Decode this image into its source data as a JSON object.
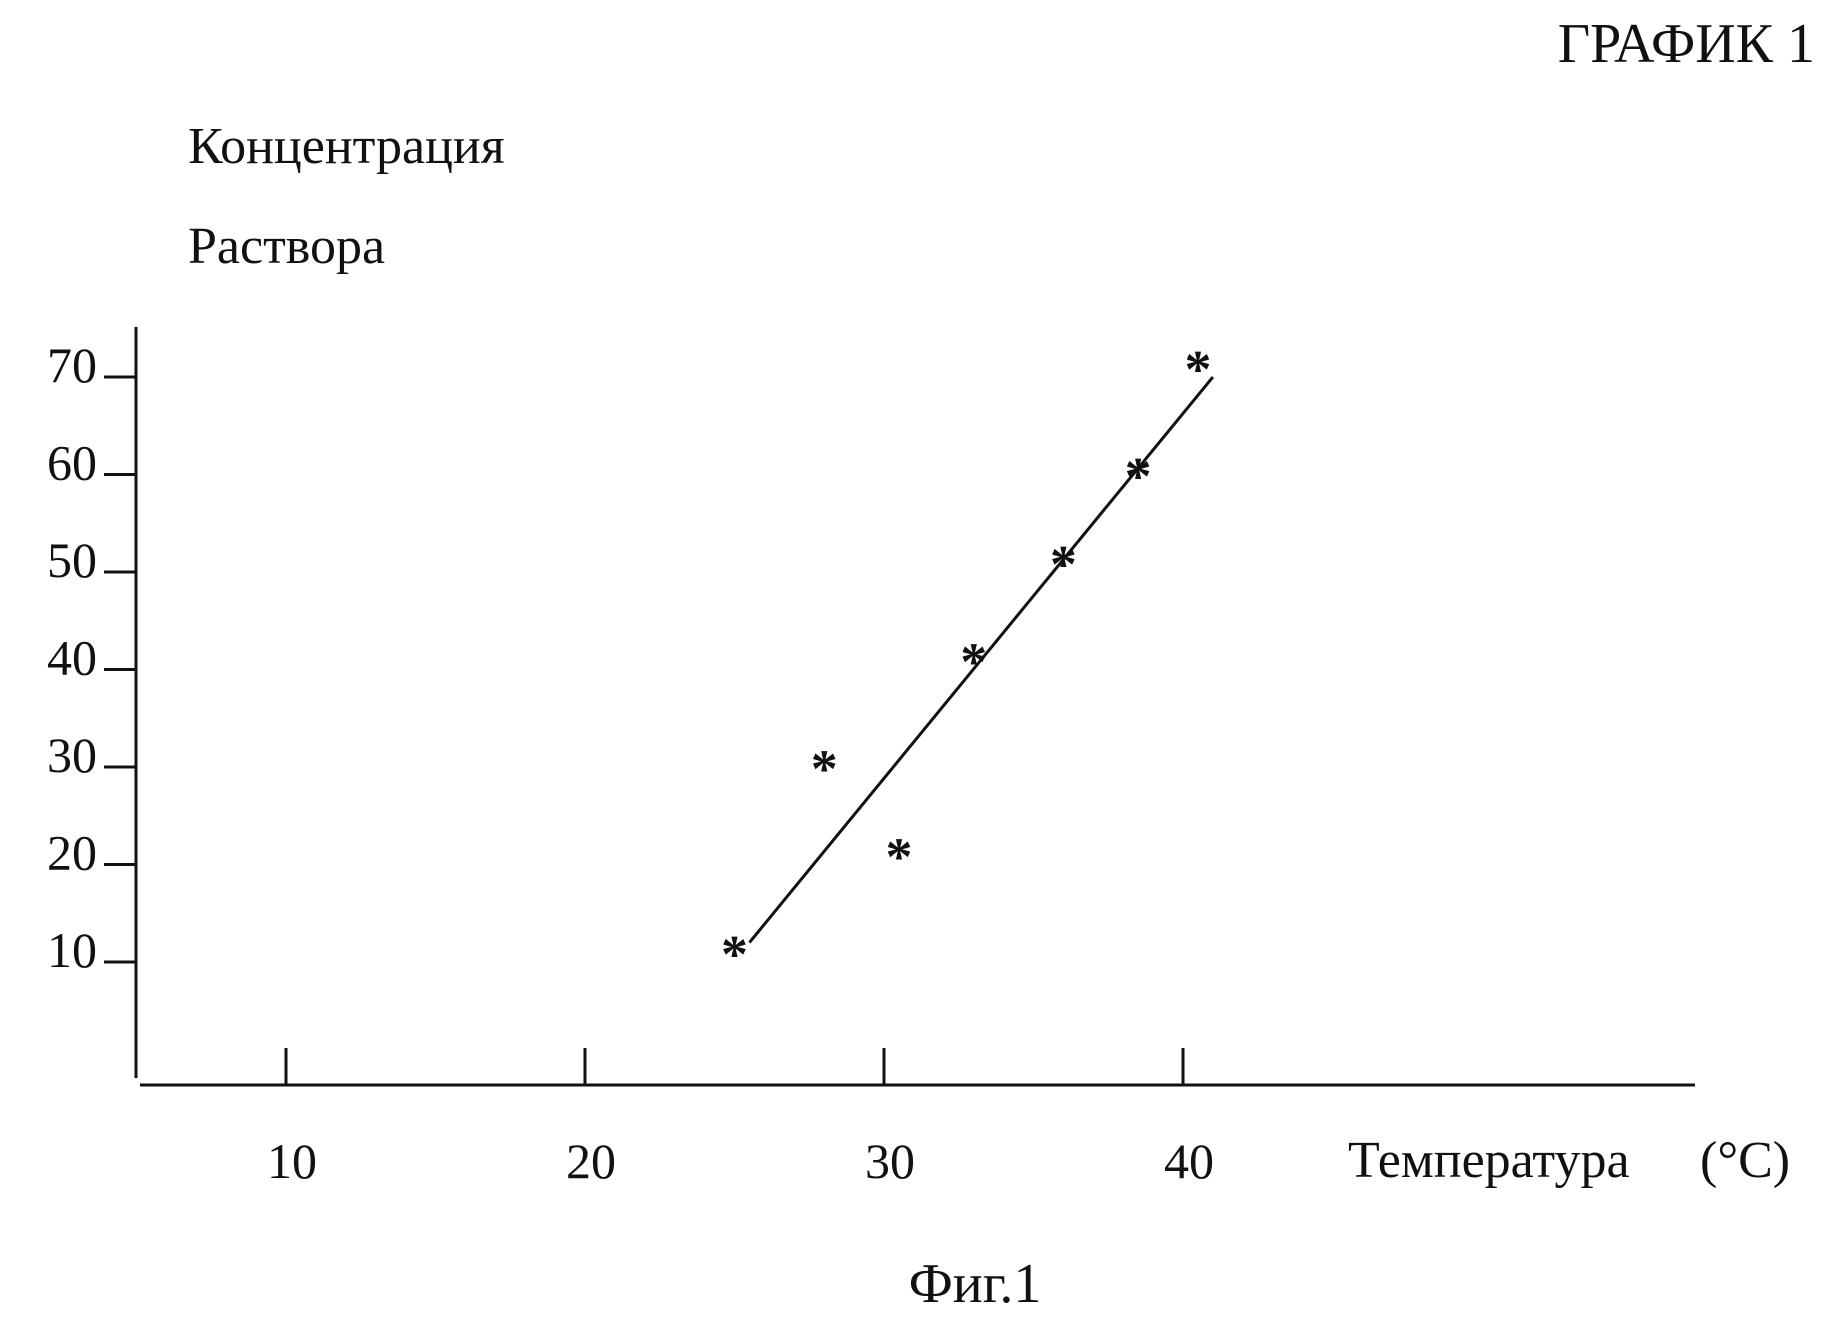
{
  "header": {
    "label": "ГРАФИК 1"
  },
  "caption": "Фиг.1",
  "chart_data": {
    "type": "scatter",
    "title": "",
    "ylabel_lines": [
      "Концентрация",
      "Раствора"
    ],
    "xlabel": "Температура",
    "xlabel_unit": "(°C)",
    "xlim": [
      5,
      62
    ],
    "ylim": [
      -3,
      73
    ],
    "x_ticks": [
      10,
      20,
      30,
      40
    ],
    "y_ticks": [
      10,
      20,
      30,
      40,
      50,
      60,
      70
    ],
    "grid": false,
    "marker": "*",
    "points": [
      {
        "x": 25.0,
        "y": 11
      },
      {
        "x": 28.0,
        "y": 30
      },
      {
        "x": 30.5,
        "y": 21
      },
      {
        "x": 33.0,
        "y": 41
      },
      {
        "x": 36.0,
        "y": 51
      },
      {
        "x": 38.5,
        "y": 60
      },
      {
        "x": 40.5,
        "y": 71
      }
    ],
    "fit_line": {
      "x": [
        25.5,
        41.0
      ],
      "y": [
        12,
        70
      ]
    }
  }
}
